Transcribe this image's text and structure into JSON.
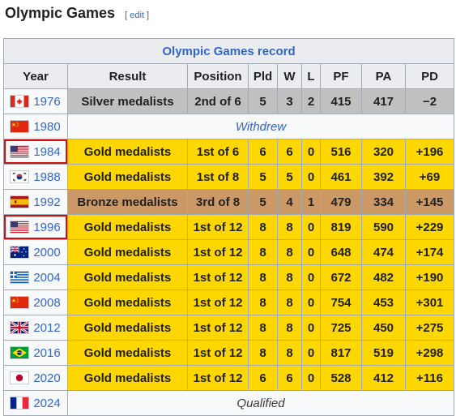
{
  "heading": {
    "title": "Olympic Games",
    "edit_open": "[",
    "edit_label": "edit",
    "edit_close": "]"
  },
  "table": {
    "caption": "Olympic Games record",
    "columns": [
      "Year",
      "Result",
      "Position",
      "Pld",
      "W",
      "L",
      "PF",
      "PA",
      "PD"
    ],
    "rows": [
      {
        "year": "1976",
        "flag": "canada-flag-icon",
        "medal": "silver",
        "result": "Silver medalists",
        "position": "2nd of 6",
        "pld": "5",
        "w": "3",
        "l": "2",
        "pf": "415",
        "pa": "417",
        "pd": "−2"
      },
      {
        "year": "1980",
        "flag": "china-flag-icon",
        "medal": "none",
        "span_text": "Withdrew"
      },
      {
        "year": "1984",
        "flag": "usa-flag-icon",
        "medal": "gold",
        "highlight": true,
        "result": "Gold medalists",
        "position": "1st of 6",
        "pld": "6",
        "w": "6",
        "l": "0",
        "pf": "516",
        "pa": "320",
        "pd": "+196"
      },
      {
        "year": "1988",
        "flag": "south-korea-flag-icon",
        "medal": "gold",
        "result": "Gold medalists",
        "position": "1st of 8",
        "pld": "5",
        "w": "5",
        "l": "0",
        "pf": "461",
        "pa": "392",
        "pd": "+69"
      },
      {
        "year": "1992",
        "flag": "spain-flag-icon",
        "medal": "bronze",
        "result": "Bronze medalists",
        "position": "3rd of 8",
        "pld": "5",
        "w": "4",
        "l": "1",
        "pf": "479",
        "pa": "334",
        "pd": "+145"
      },
      {
        "year": "1996",
        "flag": "usa-flag-icon",
        "medal": "gold",
        "highlight": true,
        "result": "Gold medalists",
        "position": "1st of 12",
        "pld": "8",
        "w": "8",
        "l": "0",
        "pf": "819",
        "pa": "590",
        "pd": "+229"
      },
      {
        "year": "2000",
        "flag": "australia-flag-icon",
        "medal": "gold",
        "result": "Gold medalists",
        "position": "1st of 12",
        "pld": "8",
        "w": "8",
        "l": "0",
        "pf": "648",
        "pa": "474",
        "pd": "+174"
      },
      {
        "year": "2004",
        "flag": "greece-flag-icon",
        "medal": "gold",
        "result": "Gold medalists",
        "position": "1st of 12",
        "pld": "8",
        "w": "8",
        "l": "0",
        "pf": "672",
        "pa": "482",
        "pd": "+190"
      },
      {
        "year": "2008",
        "flag": "china-flag-icon",
        "medal": "gold",
        "result": "Gold medalists",
        "position": "1st of 12",
        "pld": "8",
        "w": "8",
        "l": "0",
        "pf": "754",
        "pa": "453",
        "pd": "+301"
      },
      {
        "year": "2012",
        "flag": "uk-flag-icon",
        "medal": "gold",
        "result": "Gold medalists",
        "position": "1st of 12",
        "pld": "8",
        "w": "8",
        "l": "0",
        "pf": "725",
        "pa": "450",
        "pd": "+275"
      },
      {
        "year": "2016",
        "flag": "brazil-flag-icon",
        "medal": "gold",
        "result": "Gold medalists",
        "position": "1st of 12",
        "pld": "8",
        "w": "8",
        "l": "0",
        "pf": "817",
        "pa": "519",
        "pd": "+298"
      },
      {
        "year": "2020",
        "flag": "japan-flag-icon",
        "medal": "gold",
        "result": "Gold medalists",
        "position": "1st of 12",
        "pld": "6",
        "w": "6",
        "l": "0",
        "pf": "528",
        "pa": "412",
        "pd": "+116"
      },
      {
        "year": "2024",
        "flag": "france-flag-icon",
        "medal": "none",
        "span_text": "Qualified"
      }
    ]
  },
  "colors": {
    "gold": "#ffd700",
    "silver": "#c0c0c0",
    "bronze": "#cc9966",
    "header": "#eaecf0",
    "link": "#3366cc",
    "highlight_border": "#d01010"
  }
}
